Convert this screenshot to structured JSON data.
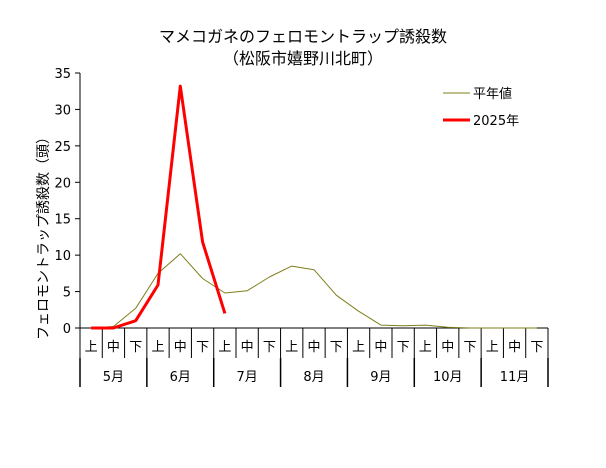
{
  "chart_data": {
    "type": "line",
    "title": "マメコガネのフェロモントラップ誘殺数",
    "subtitle": "（松阪市嬉野川北町）",
    "ylabel": "フェロモントラップ誘殺数（頭）",
    "ylim": [
      0,
      35
    ],
    "yticks": [
      0,
      5,
      10,
      15,
      20,
      25,
      30,
      35
    ],
    "period_labels": [
      "上",
      "中",
      "下",
      "上",
      "中",
      "下",
      "上",
      "中",
      "下",
      "上",
      "中",
      "下",
      "上",
      "中",
      "下",
      "上",
      "中",
      "下",
      "上",
      "中",
      "下"
    ],
    "month_labels": [
      "5月",
      "6月",
      "7月",
      "8月",
      "9月",
      "10月",
      "11月"
    ],
    "series": [
      {
        "name": "平年値",
        "color": "#7f7f1a",
        "values": [
          0,
          0.2,
          2.7,
          7.5,
          10.2,
          6.8,
          4.8,
          5.1,
          7.0,
          8.5,
          8.0,
          4.5,
          2.3,
          0.4,
          0.3,
          0.4,
          0.1,
          0,
          0,
          0,
          0
        ]
      },
      {
        "name": "2025年",
        "color": "#ff0000",
        "values": [
          0,
          0,
          1.0,
          5.9,
          33.2,
          11.8,
          2.0
        ]
      }
    ],
    "legend_position": "top-right",
    "grid": false
  }
}
